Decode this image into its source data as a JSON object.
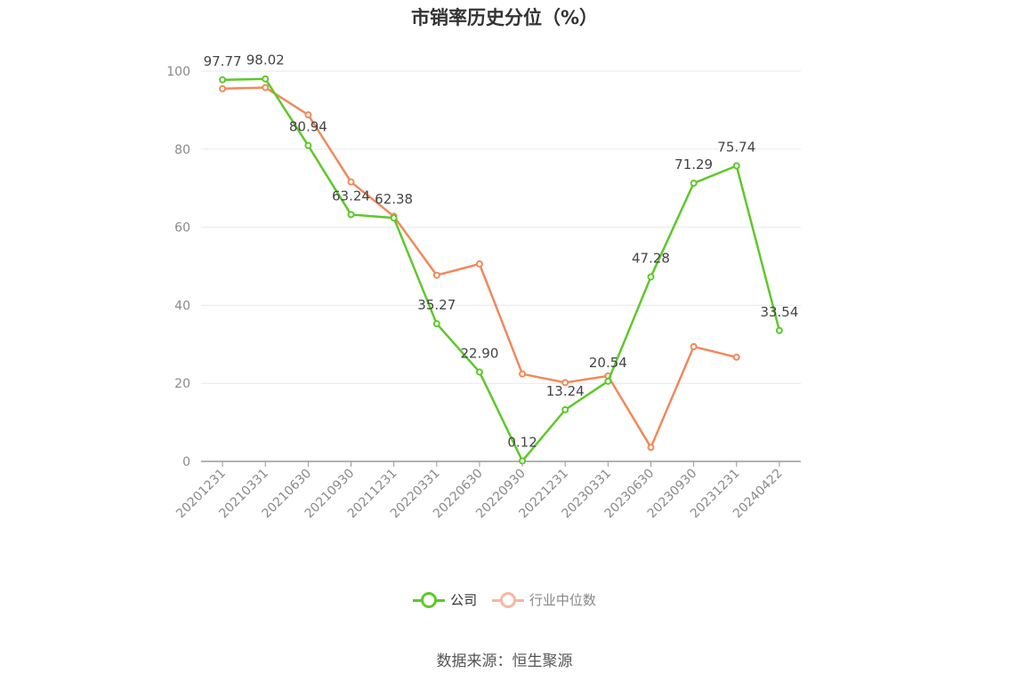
{
  "title": "市销率历史分位（%）",
  "source": "数据来源：恒生聚源",
  "legend": {
    "company": "公司",
    "industry": "行业中位数"
  },
  "colors": {
    "company": "#5ec82b",
    "industry": "#f0895a",
    "industry_legend": "#f7b7a0",
    "grid": "#e6e8ef",
    "axis": "#999999"
  },
  "chart_data": {
    "type": "line",
    "title": "市销率历史分位（%）",
    "categories": [
      "20201231",
      "20210331",
      "20210630",
      "20210930",
      "20211231",
      "20220331",
      "20220630",
      "20220930",
      "20221231",
      "20230331",
      "20230630",
      "20230930",
      "20231231",
      "20240422"
    ],
    "ylim": [
      0,
      100
    ],
    "yticks": [
      0,
      20,
      40,
      60,
      80,
      100
    ],
    "grid": true,
    "legend_position": "bottom",
    "series": [
      {
        "name": "公司",
        "values": [
          97.77,
          98.02,
          80.94,
          63.24,
          62.38,
          35.27,
          22.9,
          0.12,
          13.24,
          20.54,
          47.28,
          71.29,
          75.74,
          33.54
        ],
        "labels": [
          "97.77",
          "98.02",
          "80.94",
          "63.24",
          "62.38",
          "35.27",
          "22.90",
          "0.12",
          "13.24",
          "20.54",
          "47.28",
          "71.29",
          "75.74",
          "33.54"
        ]
      },
      {
        "name": "行业中位数",
        "values": [
          95.5,
          95.8,
          88.8,
          71.6,
          62.8,
          47.7,
          50.6,
          22.4,
          20.2,
          21.9,
          3.6,
          29.4,
          26.7,
          null
        ]
      }
    ]
  }
}
